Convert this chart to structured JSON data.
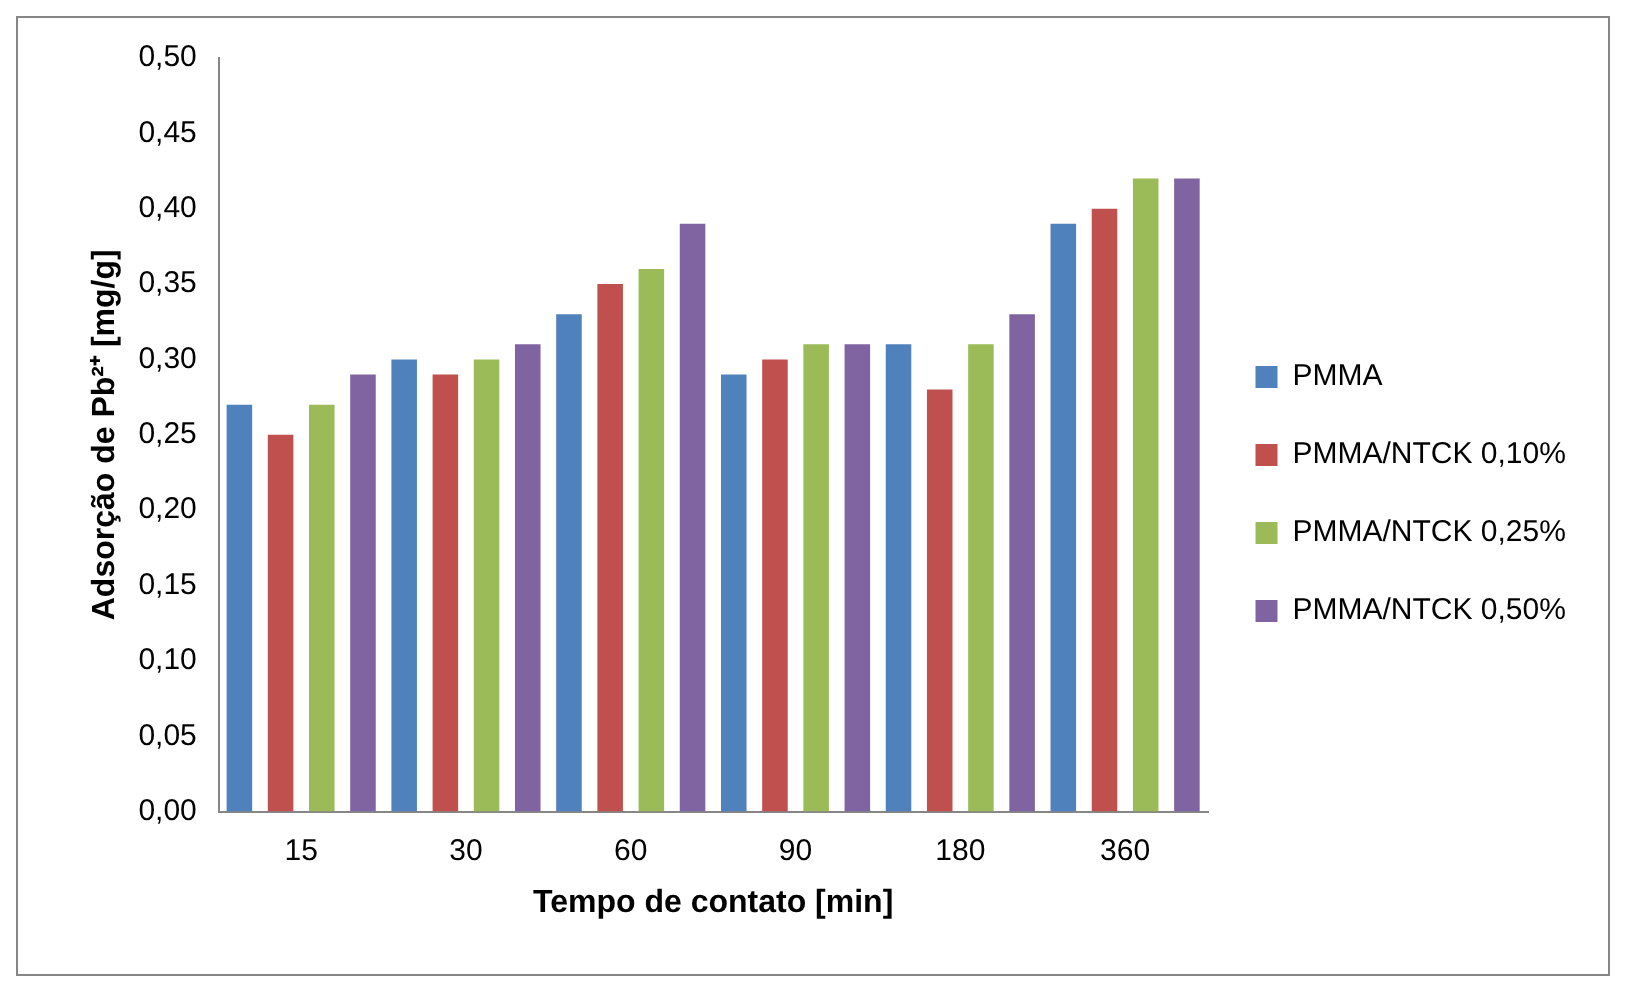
{
  "chart_data": {
    "type": "bar",
    "xlabel": "Tempo de contato [min]",
    "ylabel": "Adsorção de Pb²⁺ [mg/g]",
    "categories": [
      "15",
      "30",
      "60",
      "90",
      "180",
      "360"
    ],
    "series": [
      {
        "name": "PMMA",
        "color": "#4f81bd",
        "values": [
          0.27,
          0.3,
          0.33,
          0.29,
          0.31,
          0.39
        ]
      },
      {
        "name": "PMMA/NTCK 0,10%",
        "color": "#c0504d",
        "values": [
          0.25,
          0.29,
          0.35,
          0.3,
          0.28,
          0.4
        ]
      },
      {
        "name": "PMMA/NTCK 0,25%",
        "color": "#9bbb59",
        "values": [
          0.27,
          0.3,
          0.36,
          0.31,
          0.31,
          0.42
        ]
      },
      {
        "name": "PMMA/NTCK 0,50%",
        "color": "#8064a2",
        "values": [
          0.29,
          0.31,
          0.39,
          0.31,
          0.33,
          0.42
        ]
      }
    ],
    "ylim": [
      0,
      0.5
    ],
    "yticks": [
      {
        "value": 0,
        "label": "0,00"
      },
      {
        "value": 0.05,
        "label": "0,05"
      },
      {
        "value": 0.1,
        "label": "0,10"
      },
      {
        "value": 0.15,
        "label": "0,15"
      },
      {
        "value": 0.2,
        "label": "0,20"
      },
      {
        "value": 0.25,
        "label": "0,25"
      },
      {
        "value": 0.3,
        "label": "0,30"
      },
      {
        "value": 0.35,
        "label": "0,35"
      },
      {
        "value": 0.4,
        "label": "0,40"
      },
      {
        "value": 0.45,
        "label": "0,45"
      },
      {
        "value": 0.5,
        "label": "0,50"
      }
    ],
    "grid": false,
    "legend": "right"
  }
}
